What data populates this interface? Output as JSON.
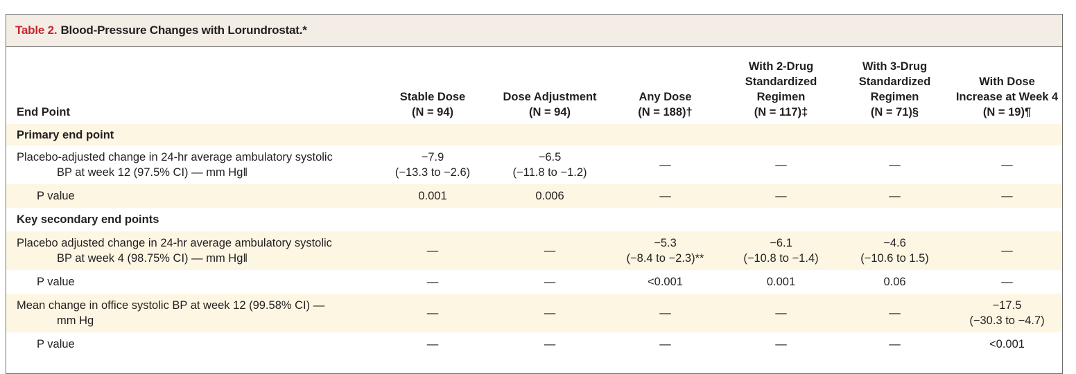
{
  "table": {
    "label": "Table 2.",
    "title": "Blood-Pressure Changes with Lorundrostat.*",
    "columns": {
      "end_point": [
        "End Point"
      ],
      "stable": [
        "Stable Dose",
        "(N = 94)"
      ],
      "adjust": [
        "Dose Adjustment",
        "(N = 94)"
      ],
      "any": [
        "Any Dose",
        "(N = 188)†"
      ],
      "two_drug": [
        "With 2-Drug",
        "Standardized",
        "Regimen",
        "(N = 117)‡"
      ],
      "three_drug": [
        "With 3-Drug",
        "Standardized",
        "Regimen",
        "(N = 71)§"
      ],
      "dose_increase": [
        "With Dose",
        "Increase at Week 4",
        "(N = 19)¶"
      ]
    },
    "sections": {
      "primary": "Primary end point",
      "secondary": "Key secondary end points"
    },
    "rows": {
      "r1": {
        "label": [
          "Placebo-adjusted change in 24-hr average ambulatory systolic",
          "BP at week 12 (97.5% CI) — mm Hg‖"
        ],
        "stable": [
          "−7.9",
          "(−13.3 to −2.6)"
        ],
        "adjust": [
          "−6.5",
          "(−11.8 to −1.2)"
        ],
        "any": "—",
        "two_drug": "—",
        "three_drug": "—",
        "dose_increase": "—"
      },
      "r1p": {
        "label": "P value",
        "stable": "0.001",
        "adjust": "0.006",
        "any": "—",
        "two_drug": "—",
        "three_drug": "—",
        "dose_increase": "—"
      },
      "r2": {
        "label": [
          "Placebo adjusted change in 24-hr average ambulatory systolic",
          "BP at week 4 (98.75% CI) — mm Hg‖"
        ],
        "stable": "—",
        "adjust": "—",
        "any": [
          "−5.3",
          "(−8.4 to −2.3)**"
        ],
        "two_drug": [
          "−6.1",
          "(−10.8 to −1.4)"
        ],
        "three_drug": [
          "−4.6",
          "(−10.6 to 1.5)"
        ],
        "dose_increase": "—"
      },
      "r2p": {
        "label": "P value",
        "stable": "—",
        "adjust": "—",
        "any": "<0.001",
        "two_drug": "0.001",
        "three_drug": "0.06",
        "dose_increase": "—"
      },
      "r3": {
        "label": [
          "Mean change in office systolic BP at week 12 (99.58% CI) —",
          "mm Hg"
        ],
        "stable": "—",
        "adjust": "—",
        "any": "—",
        "two_drug": "—",
        "three_drug": "—",
        "dose_increase": [
          "−17.5",
          "(−30.3 to −4.7)"
        ]
      },
      "r3p": {
        "label": "P value",
        "stable": "—",
        "adjust": "—",
        "any": "—",
        "two_drug": "—",
        "three_drug": "—",
        "dose_increase": "<0.001"
      }
    }
  }
}
